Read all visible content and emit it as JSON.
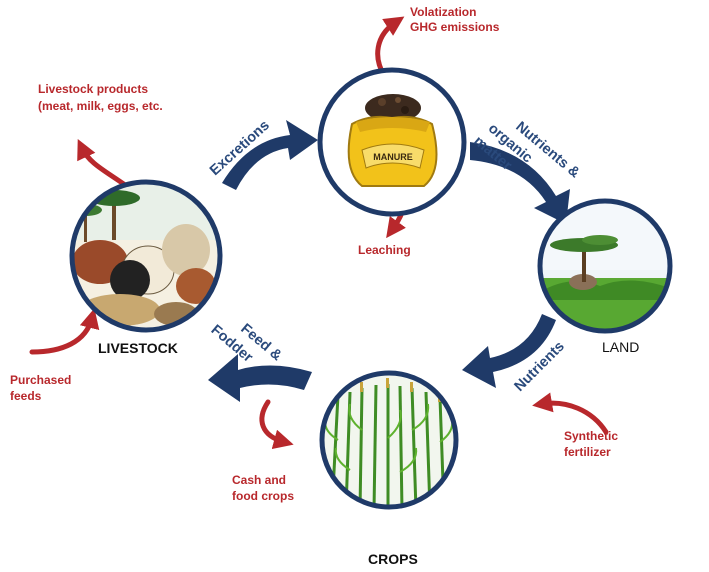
{
  "nodes": {
    "livestock": {
      "label": "LIVESTOCK"
    },
    "manure": {
      "sack_text": "MANURE"
    },
    "land": {
      "label": "LAND"
    },
    "crops": {
      "label": "CROPS"
    }
  },
  "flows": {
    "excretions": "Excretions",
    "nutrients_organic": [
      "Nutrients &",
      "organic",
      "matter"
    ],
    "nutrients": "Nutrients",
    "feed_fodder": [
      "Feed &",
      "Fodder"
    ]
  },
  "inputs_outputs": {
    "volatilization": [
      "Volatization",
      "GHG emissions"
    ],
    "livestock_products": [
      "Livestock products",
      "(meat, milk, eggs, etc."
    ],
    "leaching": "Leaching",
    "purchased_feeds": [
      "Purchased",
      "feeds"
    ],
    "cash_food_crops": [
      "Cash and",
      "food crops"
    ],
    "synthetic_fertilizer": [
      "Synthetic",
      "fertilizer"
    ]
  },
  "colors": {
    "flow_arrow": "#1f3a68",
    "io_arrow": "#b8282c",
    "flow_text": "#2a4a7c",
    "io_text": "#b8282c"
  }
}
